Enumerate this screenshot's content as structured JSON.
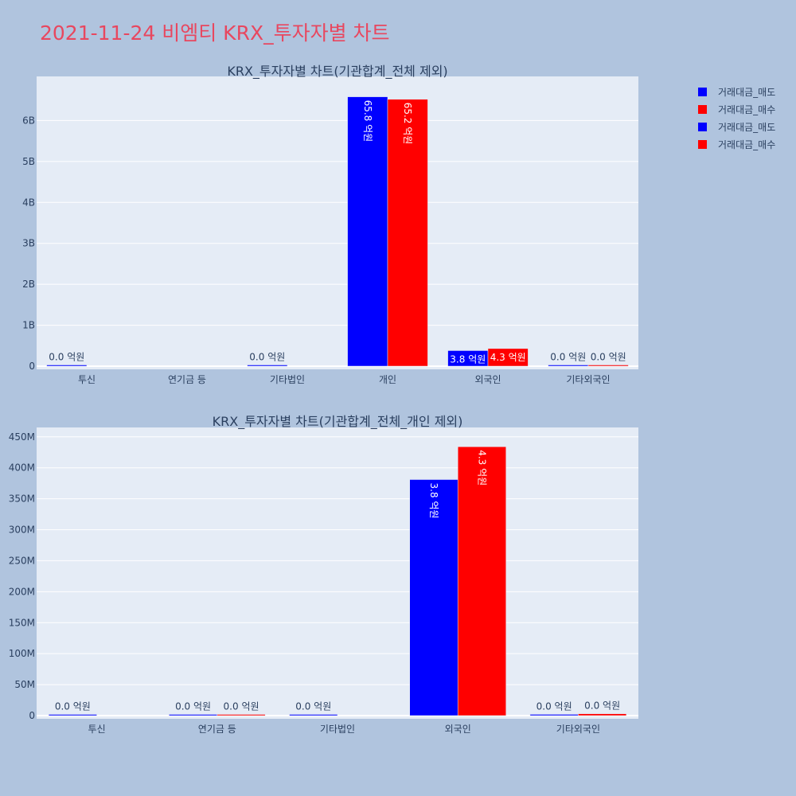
{
  "title": "2021-11-24 비엠티 KRX_투자자별 차트",
  "colors": {
    "page_bg": "#b0c4de",
    "plot_bg": "#e5ecf6",
    "title": "#e8475f",
    "text": "#2a3f5f",
    "sell": "#0000ff",
    "buy": "#ff0000"
  },
  "legend": {
    "position": "top-right",
    "items": [
      {
        "label": "거래대금_매도",
        "color": "#0000ff"
      },
      {
        "label": "거래대금_매수",
        "color": "#ff0000"
      },
      {
        "label": "거래대금_매도",
        "color": "#0000ff"
      },
      {
        "label": "거래대금_매수",
        "color": "#ff0000"
      }
    ]
  },
  "chart_data": [
    {
      "type": "bar",
      "title": "KRX_투자자별 차트(기관합계_전체 제외)",
      "categories": [
        "투신",
        "연기금 등",
        "기타법인",
        "개인",
        "외국인",
        "기타외국인"
      ],
      "ylim": [
        0,
        7000000000
      ],
      "yticks": [
        0,
        1000000000,
        2000000000,
        3000000000,
        4000000000,
        5000000000,
        6000000000
      ],
      "ytick_labels": [
        "0",
        "1B",
        "2B",
        "3B",
        "4B",
        "5B",
        "6B"
      ],
      "grid": true,
      "series": [
        {
          "name": "거래대금_매도",
          "color": "#0000ff",
          "values": [
            1000000,
            null,
            1000000,
            6580000000,
            380000000,
            2000000
          ],
          "labels": [
            "0.0 억원",
            "",
            "0.0 억원",
            "65.8 억원",
            "3.8 억원",
            "0.0 억원"
          ]
        },
        {
          "name": "거래대금_매수",
          "color": "#ff0000",
          "values": [
            null,
            null,
            null,
            6520000000,
            430000000,
            3000000
          ],
          "labels": [
            "",
            "",
            "",
            "65.2 억원",
            "4.3 억원",
            "0.0 억원"
          ]
        }
      ]
    },
    {
      "type": "bar",
      "title": "KRX_투자자별 차트(기관합계_전체_개인 제외)",
      "categories": [
        "투신",
        "연기금 등",
        "기타법인",
        "외국인",
        "기타외국인"
      ],
      "ylim": [
        0,
        460000000
      ],
      "yticks": [
        0,
        50000000,
        100000000,
        150000000,
        200000000,
        250000000,
        300000000,
        350000000,
        400000000,
        450000000
      ],
      "ytick_labels": [
        "0",
        "50M",
        "100M",
        "150M",
        "200M",
        "250M",
        "300M",
        "350M",
        "400M",
        "450M"
      ],
      "grid": true,
      "series": [
        {
          "name": "거래대금_매도",
          "color": "#0000ff",
          "values": [
            1000000,
            500000,
            1000000,
            381000000,
            2000000
          ],
          "labels": [
            "0.0 억원",
            "0.0 억원",
            "0.0 억원",
            "3.8 억원",
            "0.0 억원"
          ]
        },
        {
          "name": "거래대금_매수",
          "color": "#ff0000",
          "values": [
            null,
            500000,
            null,
            434000000,
            3000000
          ],
          "labels": [
            "",
            "0.0 억원",
            "",
            "4.3 억원",
            "0.0 억원"
          ]
        }
      ]
    }
  ]
}
